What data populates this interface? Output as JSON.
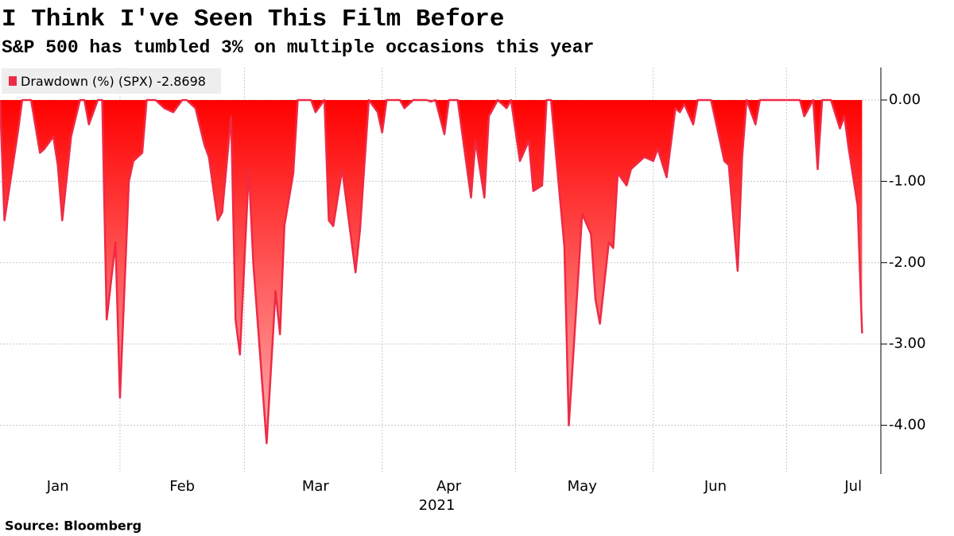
{
  "chart_data": {
    "type": "area",
    "title": "I Think I've Seen This Film Before",
    "subtitle": "S&P 500 has tumbled 3% on multiple occasions this year",
    "source": "Source: Bloomberg",
    "xlabel": "2021",
    "x": [
      5,
      6,
      9,
      10,
      12,
      14,
      15,
      17,
      18,
      19,
      21,
      23,
      24,
      25,
      27,
      28,
      29,
      31,
      32,
      34,
      35,
      37,
      38,
      40,
      42,
      44,
      46,
      47,
      49,
      51,
      52,
      54,
      55,
      57,
      58,
      59,
      61,
      62,
      65,
      67,
      68,
      69,
      71,
      72,
      75,
      76,
      78,
      79,
      80,
      82,
      85,
      86,
      88,
      90,
      91,
      92,
      95,
      96,
      98,
      101,
      102,
      103,
      105,
      106,
      108,
      111,
      112,
      114,
      115,
      117,
      119,
      120,
      122,
      124,
      125,
      127,
      128,
      129,
      132,
      133,
      136,
      138,
      139,
      140,
      142,
      143,
      144,
      146,
      147,
      149,
      150,
      152,
      153,
      155,
      157,
      158,
      159,
      161,
      162,
      165,
      168,
      169,
      171,
      172,
      173,
      175,
      176,
      185,
      186,
      188,
      189,
      190,
      192,
      194,
      195,
      196,
      198,
      199
    ],
    "series": [
      {
        "name": "Drawdown (%) (SPX)",
        "color": "#ee2a45",
        "values": [
          0,
          -1.48,
          -0.4,
          0,
          0,
          -0.65,
          -0.6,
          -0.45,
          -0.8,
          -1.48,
          -0.45,
          0,
          0,
          -0.3,
          0,
          0,
          -2.7,
          -1.75,
          -3.66,
          -1.0,
          -0.75,
          -0.65,
          0,
          0,
          -0.1,
          -0.15,
          0,
          0,
          -0.1,
          -0.55,
          -0.7,
          -1.48,
          -1.38,
          -0.2,
          -2.7,
          -3.13,
          -0.85,
          -2.0,
          -4.22,
          -2.35,
          -2.88,
          -1.55,
          -0.9,
          0,
          0,
          -0.15,
          0,
          -1.48,
          -1.55,
          -0.85,
          -2.12,
          -1.6,
          0,
          -0.15,
          -0.4,
          0,
          0,
          -0.1,
          0,
          0,
          -0.02,
          0,
          -0.42,
          0,
          0,
          -1.2,
          -0.5,
          -1.2,
          -0.2,
          0,
          -0.1,
          0,
          -0.75,
          -0.5,
          -1.12,
          -1.05,
          0,
          0,
          -1.8,
          -4.0,
          -1.4,
          -1.65,
          -2.45,
          -2.75,
          -1.75,
          -1.82,
          -0.9,
          -1.05,
          -0.85,
          -0.75,
          -0.7,
          -0.75,
          -0.6,
          -0.95,
          -0.1,
          -0.15,
          -0.05,
          -0.3,
          0,
          0,
          -0.75,
          -0.8,
          -2.1,
          -0.7,
          0,
          -0.3,
          0,
          0,
          -0.2,
          0,
          -0.85,
          0,
          0,
          -0.35,
          -0.2,
          -0.6,
          -1.3,
          -2.8698
        ]
      }
    ],
    "xlim": [
      5,
      200
    ],
    "xticks": [
      {
        "value": 18,
        "label": "Jan"
      },
      {
        "value": 46,
        "label": "Feb"
      },
      {
        "value": 76,
        "label": "Mar"
      },
      {
        "value": 106,
        "label": "Apr"
      },
      {
        "value": 136,
        "label": "May"
      },
      {
        "value": 166,
        "label": "Jun"
      },
      {
        "value": 197,
        "label": "Jul"
      }
    ],
    "xgrid": [
      32,
      60,
      91,
      121,
      152,
      182
    ],
    "ylim": [
      -4.6,
      0.4
    ],
    "yticks": [
      {
        "value": 0,
        "label": "0.00"
      },
      {
        "value": -1,
        "label": "-1.00"
      },
      {
        "value": -2,
        "label": "-2.00"
      },
      {
        "value": -3,
        "label": "-3.00"
      },
      {
        "value": -4,
        "label": "-4.00"
      }
    ],
    "grid": true,
    "legend": "top-left"
  }
}
